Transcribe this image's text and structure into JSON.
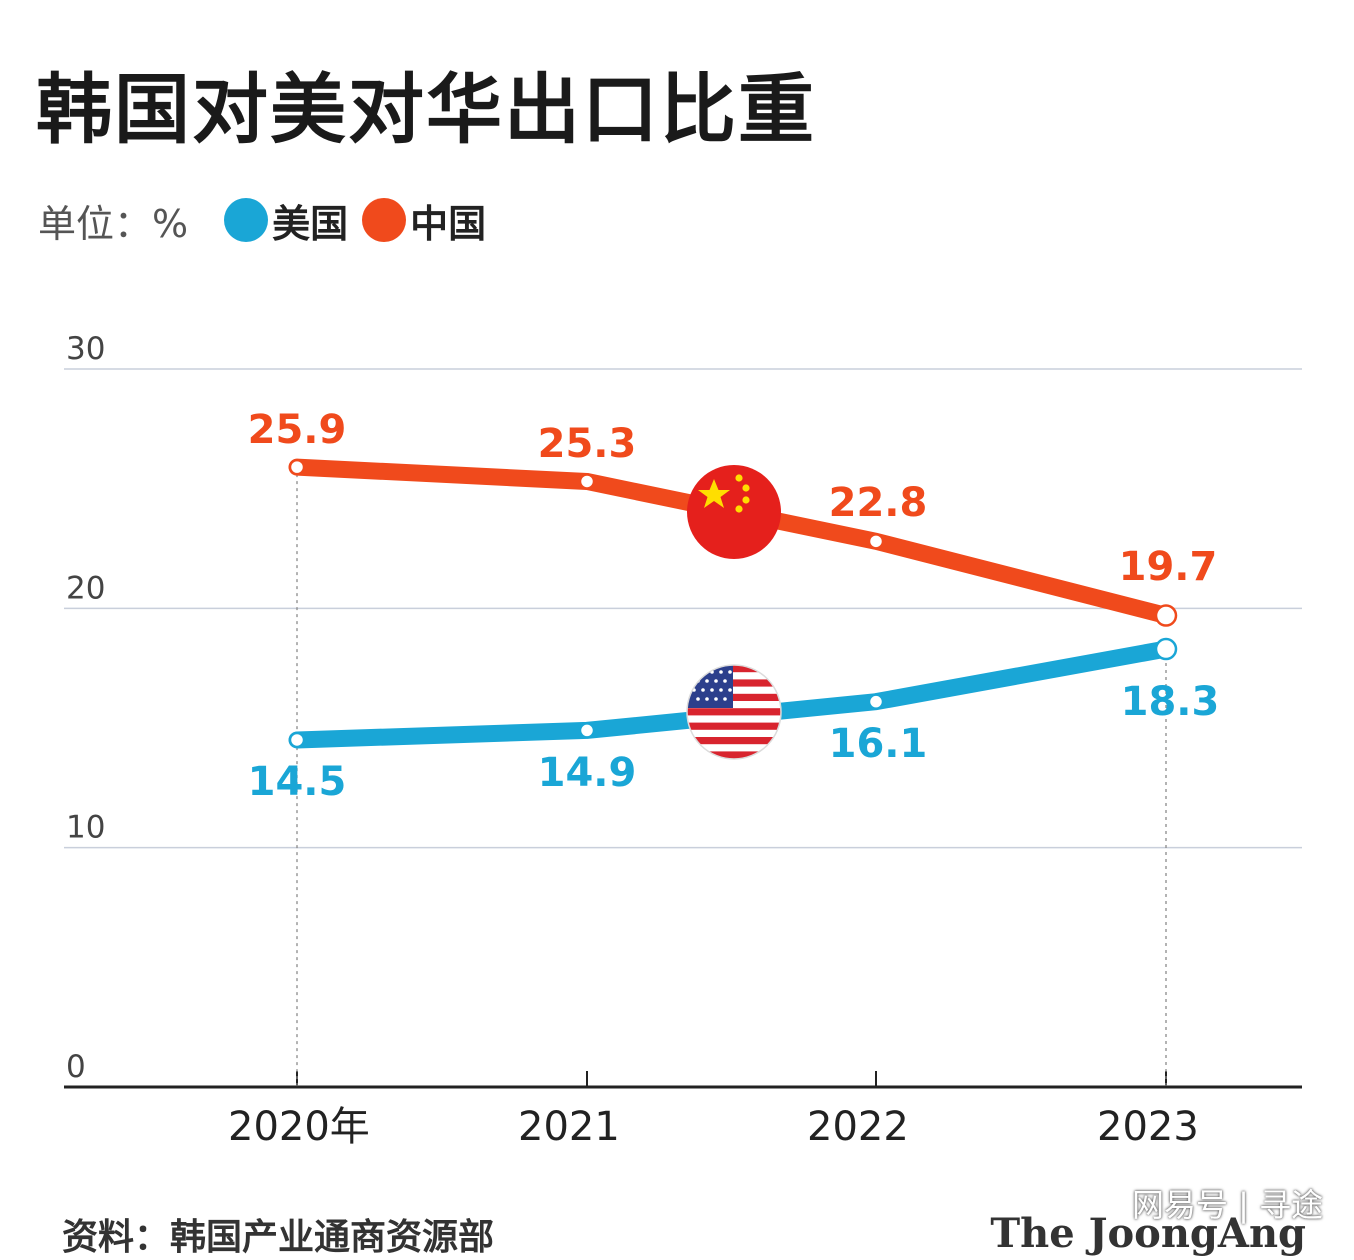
{
  "header": {
    "title": "韩国对美对华出口比重",
    "unit": "单位：%"
  },
  "legend": [
    {
      "name": "美国",
      "color": "#1aa6d6"
    },
    {
      "name": "中国",
      "color": "#f04a1c"
    }
  ],
  "footer": {
    "source": "资料：韩国产业通商资源部",
    "publisher": "The JoongAng"
  },
  "watermark": "网易号 | 寻途",
  "flags": [
    "china-flag-icon",
    "usa-flag-icon"
  ],
  "chart_data": {
    "type": "line",
    "categories": [
      "2020年",
      "2021",
      "2022",
      "2023"
    ],
    "x": [
      "2020年",
      "2021",
      "2022",
      "2023"
    ],
    "series": [
      {
        "name": "中国",
        "color": "#f04a1c",
        "values": [
          25.9,
          25.3,
          22.8,
          19.7
        ]
      },
      {
        "name": "美国",
        "color": "#1aa6d6",
        "values": [
          14.5,
          14.9,
          16.1,
          18.3
        ]
      }
    ],
    "yticks": [
      0,
      10,
      20,
      30
    ],
    "ylim": [
      0,
      30
    ],
    "grid": true,
    "title": "韩国对美对华出口比重",
    "xlabel": "",
    "ylabel": "单位：%",
    "legend_position": "top-left"
  }
}
